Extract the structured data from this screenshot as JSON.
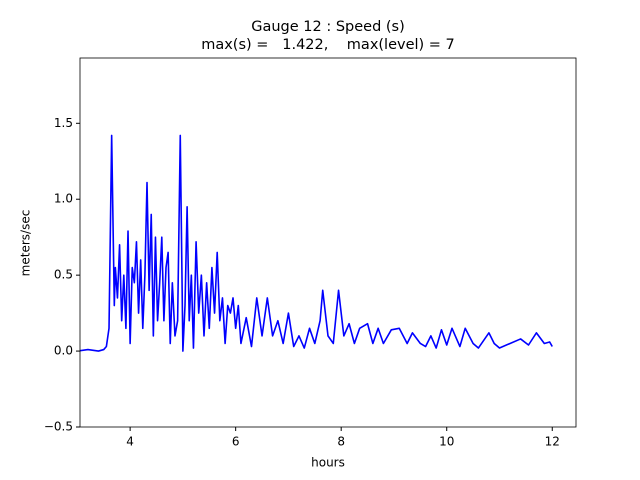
{
  "chart_data": {
    "type": "line",
    "title": "Gauge 12 : Speed (s)",
    "subtitle": "max(s) =   1.422,    max(level) = 7",
    "xlabel": "hours",
    "ylabel": "meters/sec",
    "xlim": [
      3.05,
      12.45
    ],
    "ylim": [
      -0.5,
      1.93
    ],
    "xticks": [
      4,
      6,
      8,
      10,
      12
    ],
    "yticks": [
      {
        "value": -0.5,
        "label": "−0.5"
      },
      {
        "value": 0,
        "label": "0.0"
      },
      {
        "value": 0.5,
        "label": "0.5"
      },
      {
        "value": 1,
        "label": "1.0"
      },
      {
        "value": 1.5,
        "label": "1.5"
      }
    ],
    "grid": false,
    "series": [
      {
        "color": "#0000ff",
        "x": [
          3.0,
          3.2,
          3.4,
          3.5,
          3.55,
          3.6,
          3.65,
          3.7,
          3.72,
          3.76,
          3.8,
          3.84,
          3.88,
          3.92,
          3.96,
          4.0,
          4.04,
          4.08,
          4.12,
          4.16,
          4.2,
          4.24,
          4.28,
          4.32,
          4.36,
          4.4,
          4.44,
          4.48,
          4.52,
          4.56,
          4.6,
          4.64,
          4.68,
          4.72,
          4.76,
          4.8,
          4.85,
          4.9,
          4.95,
          5.0,
          5.04,
          5.08,
          5.12,
          5.16,
          5.2,
          5.25,
          5.3,
          5.35,
          5.4,
          5.45,
          5.5,
          5.55,
          5.6,
          5.65,
          5.7,
          5.75,
          5.8,
          5.85,
          5.9,
          5.95,
          6.0,
          6.05,
          6.1,
          6.2,
          6.3,
          6.4,
          6.5,
          6.6,
          6.7,
          6.8,
          6.9,
          7.0,
          7.1,
          7.2,
          7.3,
          7.4,
          7.5,
          7.6,
          7.65,
          7.75,
          7.85,
          7.95,
          8.05,
          8.15,
          8.25,
          8.35,
          8.5,
          8.6,
          8.7,
          8.8,
          8.95,
          9.1,
          9.25,
          9.35,
          9.5,
          9.6,
          9.7,
          9.8,
          9.9,
          10.0,
          10.1,
          10.25,
          10.35,
          10.5,
          10.6,
          10.8,
          10.9,
          11.0,
          11.2,
          11.4,
          11.55,
          11.7,
          11.85,
          11.95,
          12.0
        ],
        "values": [
          0.0,
          0.01,
          0.0,
          0.01,
          0.03,
          0.15,
          1.42,
          0.3,
          0.55,
          0.35,
          0.7,
          0.2,
          0.5,
          0.15,
          0.79,
          0.05,
          0.55,
          0.45,
          0.72,
          0.25,
          0.6,
          0.15,
          0.5,
          1.11,
          0.4,
          0.9,
          0.1,
          0.75,
          0.2,
          0.45,
          0.75,
          0.2,
          0.55,
          0.65,
          0.05,
          0.45,
          0.1,
          0.2,
          1.42,
          0.0,
          0.3,
          0.95,
          0.2,
          0.5,
          0.02,
          0.72,
          0.25,
          0.5,
          0.1,
          0.45,
          0.15,
          0.55,
          0.25,
          0.65,
          0.2,
          0.35,
          0.05,
          0.3,
          0.25,
          0.35,
          0.15,
          0.3,
          0.05,
          0.22,
          0.03,
          0.35,
          0.1,
          0.35,
          0.1,
          0.2,
          0.05,
          0.25,
          0.03,
          0.1,
          0.02,
          0.15,
          0.05,
          0.2,
          0.4,
          0.1,
          0.05,
          0.4,
          0.1,
          0.18,
          0.05,
          0.15,
          0.18,
          0.05,
          0.15,
          0.05,
          0.14,
          0.15,
          0.05,
          0.12,
          0.05,
          0.03,
          0.1,
          0.02,
          0.14,
          0.04,
          0.15,
          0.03,
          0.15,
          0.05,
          0.02,
          0.12,
          0.05,
          0.02,
          0.05,
          0.08,
          0.04,
          0.12,
          0.05,
          0.06,
          0.03
        ]
      }
    ]
  }
}
